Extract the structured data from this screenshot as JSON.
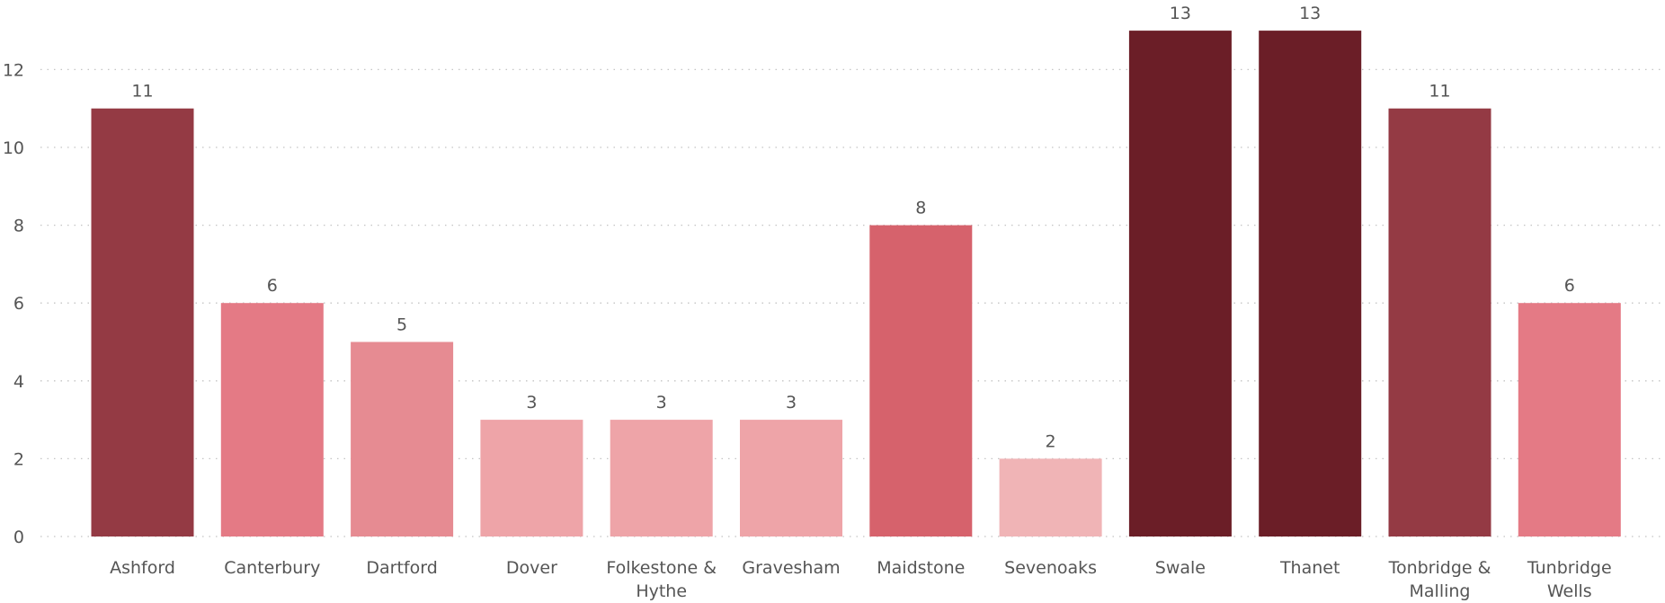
{
  "chart_data": {
    "type": "bar",
    "title": "",
    "xlabel": "",
    "ylabel": "",
    "ylim": [
      0,
      13
    ],
    "yticks": [
      0,
      2,
      4,
      6,
      8,
      10,
      12
    ],
    "grid": true,
    "data_labels": true,
    "categories": [
      {
        "lines": [
          "Ashford"
        ]
      },
      {
        "lines": [
          "Canterbury"
        ]
      },
      {
        "lines": [
          "Dartford"
        ]
      },
      {
        "lines": [
          "Dover"
        ]
      },
      {
        "lines": [
          "Folkestone &",
          "Hythe"
        ]
      },
      {
        "lines": [
          "Gravesham"
        ]
      },
      {
        "lines": [
          "Maidstone"
        ]
      },
      {
        "lines": [
          "Sevenoaks"
        ]
      },
      {
        "lines": [
          "Swale"
        ]
      },
      {
        "lines": [
          "Thanet"
        ]
      },
      {
        "lines": [
          "Tonbridge &",
          "Malling"
        ]
      },
      {
        "lines": [
          "Tunbridge",
          "Wells"
        ]
      }
    ],
    "values": [
      11,
      6,
      5,
      3,
      3,
      3,
      8,
      2,
      13,
      13,
      11,
      6
    ],
    "colors": [
      "#943a44",
      "#e47a85",
      "#e68b92",
      "#eea4a8",
      "#eea4a8",
      "#eea4a8",
      "#d6626c",
      "#f0b4b6",
      "#6b1e27",
      "#6b1e27",
      "#943a44",
      "#e47a85"
    ]
  }
}
